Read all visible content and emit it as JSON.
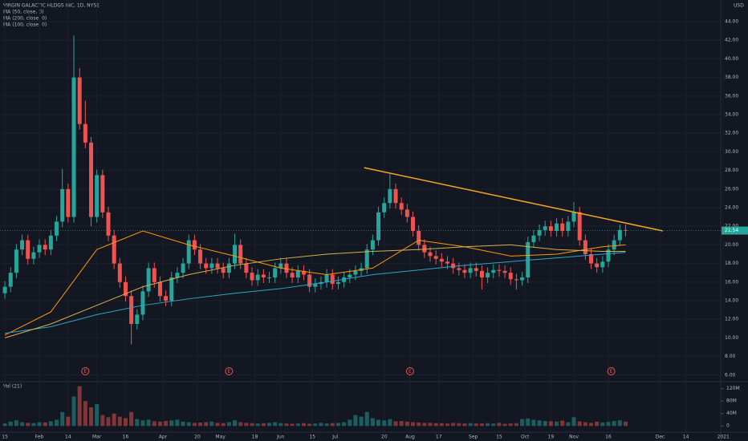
{
  "chart_data": {
    "type": "candlestick",
    "title": "VIRGIN GALACTIC HLDGS INC, 1D, NYSE",
    "currency": "USD",
    "up_color": "#26a69a",
    "down_color": "#ef5350",
    "grid": true,
    "xlim": [
      -1.7,
      249.1
    ],
    "ylim": [
      5.38,
      46.33
    ],
    "yticks": [
      {
        "value": 6,
        "label": "6.00"
      },
      {
        "value": 8,
        "label": "8.00"
      },
      {
        "value": 10,
        "label": "10.00"
      },
      {
        "value": 12,
        "label": "12.00"
      },
      {
        "value": 14,
        "label": "14.00"
      },
      {
        "value": 16,
        "label": "16.00"
      },
      {
        "value": 18,
        "label": "18.00"
      },
      {
        "value": 20,
        "label": "20.00"
      },
      {
        "value": 22,
        "label": "22.00"
      },
      {
        "value": 24,
        "label": "24.00"
      },
      {
        "value": 26,
        "label": "26.00"
      },
      {
        "value": 28,
        "label": "28.00"
      },
      {
        "value": 30,
        "label": "30.00"
      },
      {
        "value": 32,
        "label": "32.00"
      },
      {
        "value": 34,
        "label": "34.00"
      },
      {
        "value": 36,
        "label": "36.00"
      },
      {
        "value": 38,
        "label": "38.00"
      },
      {
        "value": 40,
        "label": "40.00"
      },
      {
        "value": 42,
        "label": "42.00"
      },
      {
        "value": 44,
        "label": "44.00"
      }
    ],
    "xticks": [
      {
        "value": 0,
        "label": "15"
      },
      {
        "value": 12,
        "label": "Feb"
      },
      {
        "value": 22,
        "label": "14"
      },
      {
        "value": 32,
        "label": "Mar"
      },
      {
        "value": 42,
        "label": "16"
      },
      {
        "value": 55,
        "label": "Apr"
      },
      {
        "value": 67,
        "label": "20"
      },
      {
        "value": 75,
        "label": "May"
      },
      {
        "value": 87,
        "label": "18"
      },
      {
        "value": 96,
        "label": "Jun"
      },
      {
        "value": 107,
        "label": "15"
      },
      {
        "value": 115,
        "label": "Jul"
      },
      {
        "value": 132,
        "label": "20"
      },
      {
        "value": 141,
        "label": "Aug"
      },
      {
        "value": 151,
        "label": "17"
      },
      {
        "value": 163,
        "label": "Sep"
      },
      {
        "value": 172,
        "label": "15"
      },
      {
        "value": 181,
        "label": "Oct"
      },
      {
        "value": 190,
        "label": "19"
      },
      {
        "value": 198,
        "label": "Nov"
      },
      {
        "value": 210,
        "label": "16"
      },
      {
        "value": 228,
        "label": "Dec"
      },
      {
        "value": 237,
        "label": "14"
      },
      {
        "value": 250,
        "label": "2021"
      }
    ],
    "x": [
      0,
      2,
      4,
      6,
      8,
      10,
      12,
      14,
      16,
      18,
      20,
      22,
      24,
      26,
      28,
      30,
      32,
      34,
      36,
      38,
      40,
      42,
      44,
      46,
      48,
      50,
      52,
      54,
      56,
      58,
      60,
      62,
      64,
      66,
      68,
      70,
      72,
      74,
      76,
      78,
      80,
      82,
      84,
      86,
      88,
      90,
      92,
      94,
      96,
      98,
      100,
      102,
      104,
      106,
      108,
      110,
      112,
      114,
      116,
      118,
      120,
      122,
      124,
      126,
      128,
      130,
      132,
      134,
      136,
      138,
      140,
      142,
      144,
      146,
      148,
      150,
      152,
      154,
      156,
      158,
      160,
      162,
      164,
      166,
      168,
      170,
      172,
      174,
      176,
      178,
      180,
      182,
      184,
      186,
      188,
      190,
      192,
      194,
      196,
      198,
      200,
      202,
      204,
      206,
      208,
      210,
      212,
      214,
      216
    ],
    "ohlc": [
      [
        14.8,
        16.1,
        14.2,
        15.5
      ],
      [
        15.5,
        17.6,
        14.9,
        17
      ],
      [
        17,
        20.1,
        16.4,
        19.5
      ],
      [
        19.5,
        21.1,
        18.9,
        20.5
      ],
      [
        20.5,
        21.1,
        17.9,
        18.5
      ],
      [
        18.5,
        19.8,
        17.9,
        19.2
      ],
      [
        19.2,
        20.6,
        18.6,
        20
      ],
      [
        20,
        20.6,
        18.9,
        19.5
      ],
      [
        19.5,
        21.6,
        18.9,
        21
      ],
      [
        21,
        23.1,
        20.4,
        22.5
      ],
      [
        22.5,
        28.2,
        21.9,
        26
      ],
      [
        26,
        26.6,
        22.4,
        23
      ],
      [
        23,
        42.5,
        22.4,
        38
      ],
      [
        38,
        39,
        32.4,
        33
      ],
      [
        33,
        35.5,
        30.4,
        31
      ],
      [
        31,
        31.6,
        22,
        23
      ],
      [
        23,
        28.1,
        22.4,
        27.5
      ],
      [
        27.5,
        28.1,
        22.9,
        23.5
      ],
      [
        23.5,
        24.1,
        20.4,
        21
      ],
      [
        21,
        21.6,
        17.4,
        18
      ],
      [
        18,
        18.6,
        15.4,
        16
      ],
      [
        16,
        16.6,
        13.9,
        14.5
      ],
      [
        14.5,
        15.1,
        9.3,
        11.5
      ],
      [
        11.5,
        13.1,
        10.9,
        12.5
      ],
      [
        12.5,
        15.6,
        11.9,
        15
      ],
      [
        15,
        18.1,
        14.4,
        17.5
      ],
      [
        17.5,
        18.1,
        15.4,
        16
      ],
      [
        16,
        16.6,
        13.9,
        14.5
      ],
      [
        14.5,
        15.1,
        13.4,
        14
      ],
      [
        14,
        17.1,
        13.4,
        16.5
      ],
      [
        16.5,
        17.6,
        15.9,
        17
      ],
      [
        17,
        18.6,
        16.4,
        18
      ],
      [
        18,
        21.1,
        17.4,
        20.5
      ],
      [
        20.5,
        21.1,
        18.9,
        19.5
      ],
      [
        19.5,
        20.1,
        17.4,
        18
      ],
      [
        18,
        18.6,
        16.9,
        17.5
      ],
      [
        17.5,
        18.6,
        16.9,
        18
      ],
      [
        18,
        18.6,
        16.9,
        17.5
      ],
      [
        17.5,
        18.1,
        16.4,
        17
      ],
      [
        17,
        18.6,
        16.4,
        18
      ],
      [
        18,
        21.2,
        17.4,
        20
      ],
      [
        20,
        20.6,
        17.4,
        18
      ],
      [
        18,
        18.6,
        16.4,
        17
      ],
      [
        17,
        17.6,
        15.6,
        16.2
      ],
      [
        16.2,
        17.4,
        15.6,
        16.8
      ],
      [
        16.8,
        17.4,
        15.9,
        16.5
      ],
      [
        16.5,
        17.1,
        15.9,
        16.5
      ],
      [
        16.5,
        18.1,
        15.9,
        17.5
      ],
      [
        17.5,
        18.6,
        16.9,
        18
      ],
      [
        18,
        18.6,
        16.4,
        17
      ],
      [
        17,
        17.6,
        15.9,
        16.5
      ],
      [
        16.5,
        17.8,
        15.9,
        17.2
      ],
      [
        17.2,
        17.8,
        16.2,
        16.8
      ],
      [
        16.8,
        17.4,
        14.9,
        15.5
      ],
      [
        15.5,
        16.4,
        14.9,
        15.8
      ],
      [
        15.8,
        16.6,
        15.2,
        16
      ],
      [
        16,
        17.4,
        15.4,
        16.8
      ],
      [
        16.8,
        17.4,
        15.2,
        15.8
      ],
      [
        15.8,
        16.6,
        15.2,
        16
      ],
      [
        16,
        17.1,
        15.4,
        16.5
      ],
      [
        16.5,
        17.4,
        15.9,
        16.8
      ],
      [
        16.8,
        17.8,
        16.2,
        17.2
      ],
      [
        17.2,
        18.1,
        16.6,
        17.5
      ],
      [
        17.5,
        20.1,
        16.9,
        19.5
      ],
      [
        19.5,
        21.1,
        18.9,
        20.5
      ],
      [
        20.5,
        24.1,
        19.9,
        23.5
      ],
      [
        23.5,
        25.1,
        22.9,
        24.5
      ],
      [
        24.5,
        27.6,
        23.9,
        26
      ],
      [
        26,
        26.6,
        23.9,
        24.5
      ],
      [
        24.5,
        25.1,
        23.2,
        23.8
      ],
      [
        23.8,
        24.4,
        22.4,
        23
      ],
      [
        23,
        23.6,
        20.9,
        21.5
      ],
      [
        21.5,
        22.1,
        19.4,
        20
      ],
      [
        20,
        20.6,
        18.6,
        19.2
      ],
      [
        19.2,
        19.8,
        18.2,
        18.8
      ],
      [
        18.8,
        19.4,
        17.9,
        18.5
      ],
      [
        18.5,
        19.1,
        17.6,
        18.2
      ],
      [
        18.2,
        18.8,
        17.4,
        18
      ],
      [
        18,
        18.6,
        16.9,
        17.5
      ],
      [
        17.5,
        18.1,
        16.7,
        17.3
      ],
      [
        17.3,
        17.9,
        16.4,
        17
      ],
      [
        17,
        18.1,
        16.4,
        17.5
      ],
      [
        17.5,
        18.1,
        16.6,
        17.2
      ],
      [
        17.2,
        17.8,
        15.2,
        16.5
      ],
      [
        16.5,
        17.6,
        15.9,
        17
      ],
      [
        17,
        17.9,
        16.4,
        17.3
      ],
      [
        17.3,
        17.9,
        16.6,
        17.2
      ],
      [
        17.2,
        17.8,
        16.4,
        17
      ],
      [
        17,
        17.6,
        15.7,
        16.3
      ],
      [
        16.3,
        16.9,
        15.2,
        16.2
      ],
      [
        16.2,
        17.1,
        15.6,
        16.5
      ],
      [
        16.5,
        20.9,
        15.9,
        20.3
      ],
      [
        20.3,
        21.6,
        19.7,
        21
      ],
      [
        21,
        22.2,
        20.4,
        21.6
      ],
      [
        21.6,
        22.6,
        21,
        22
      ],
      [
        22,
        22.6,
        20.9,
        21.5
      ],
      [
        21.5,
        22.9,
        20.9,
        22.3
      ],
      [
        22.3,
        22.9,
        20.9,
        21.5
      ],
      [
        21.5,
        23.1,
        20.9,
        22.5
      ],
      [
        22.5,
        24.6,
        21.9,
        23.5
      ],
      [
        23.5,
        24.1,
        19.9,
        20.5
      ],
      [
        20.5,
        21.1,
        18.4,
        19
      ],
      [
        19,
        19.6,
        17.4,
        18
      ],
      [
        18,
        18.6,
        17,
        17.6
      ],
      [
        17.6,
        18.8,
        17,
        18.2
      ],
      [
        18.2,
        20.1,
        17.6,
        19.5
      ],
      [
        19.5,
        21.1,
        18.9,
        20.5
      ],
      [
        20.5,
        22.2,
        19.9,
        21.6
      ],
      [
        21.6,
        22.2,
        20.9,
        21.54
      ]
    ],
    "last_price": 21.54,
    "lines": [
      {
        "name": "MA (50, close, 0)",
        "color": "#ff9800",
        "x": [
          0,
          16,
          32,
          48,
          64,
          80,
          96,
          112,
          128,
          144,
          160,
          176,
          192,
          208,
          216
        ],
        "values": [
          10.3,
          12.8,
          19.5,
          21.5,
          20,
          18.8,
          17.5,
          16.8,
          17.5,
          20.5,
          19.8,
          18.8,
          19,
          19.8,
          20
        ]
      },
      {
        "name": "MA (200, close, 0)",
        "color": "#2aa7c9",
        "x": [
          0,
          16,
          32,
          48,
          64,
          80,
          96,
          112,
          128,
          144,
          160,
          176,
          192,
          208,
          216
        ],
        "values": [
          10.5,
          11.2,
          12.5,
          13.5,
          14.2,
          14.8,
          15.3,
          16,
          16.8,
          17.3,
          17.8,
          18.2,
          18.6,
          19,
          19.2
        ]
      },
      {
        "name": "MA (100, close, 0)",
        "color": "#d8b04a",
        "x": [
          0,
          16,
          32,
          48,
          64,
          80,
          96,
          112,
          128,
          144,
          160,
          176,
          192,
          208,
          216
        ],
        "values": [
          10,
          11.5,
          13.5,
          15.5,
          16.8,
          17.8,
          18.5,
          19,
          19.3,
          19.5,
          19.8,
          20,
          19.5,
          19.3,
          19.3
        ]
      }
    ],
    "trendline": {
      "color": "#f5a623",
      "x": [
        125,
        229
      ],
      "values": [
        28.3,
        21.5
      ]
    },
    "events": [
      {
        "x": 28,
        "label": "E"
      },
      {
        "x": 78,
        "label": "E"
      },
      {
        "x": 141,
        "label": "E"
      },
      {
        "x": 211,
        "label": "E"
      }
    ],
    "volume": {
      "name": "Vol (21)",
      "ylim": [
        -17.5,
        140
      ],
      "yticks": [
        0,
        {
          "value": 40,
          "label": "40M"
        },
        {
          "value": 80,
          "label": "80M"
        },
        {
          "value": 120,
          "label": "120M"
        }
      ],
      "values": [
        8,
        14,
        18,
        12,
        10,
        9,
        12,
        11,
        15,
        20,
        45,
        30,
        95,
        128,
        80,
        60,
        70,
        35,
        28,
        40,
        30,
        25,
        45,
        22,
        18,
        20,
        15,
        14,
        16,
        18,
        20,
        14,
        12,
        10,
        11,
        12,
        14,
        10,
        9,
        12,
        18,
        12,
        10,
        9,
        8,
        9,
        10,
        12,
        9,
        8,
        7,
        8,
        9,
        7,
        8,
        10,
        8,
        9,
        10,
        12,
        20,
        35,
        30,
        45,
        25,
        20,
        18,
        22,
        15,
        16,
        14,
        12,
        11,
        10,
        10,
        9,
        9,
        8,
        10,
        9,
        8,
        9,
        8,
        8,
        9,
        8,
        10,
        7,
        8,
        9,
        22,
        24,
        20,
        18,
        16,
        15,
        14,
        17,
        12,
        28,
        15,
        12,
        10,
        14,
        11,
        13,
        16,
        18,
        14
      ]
    }
  }
}
